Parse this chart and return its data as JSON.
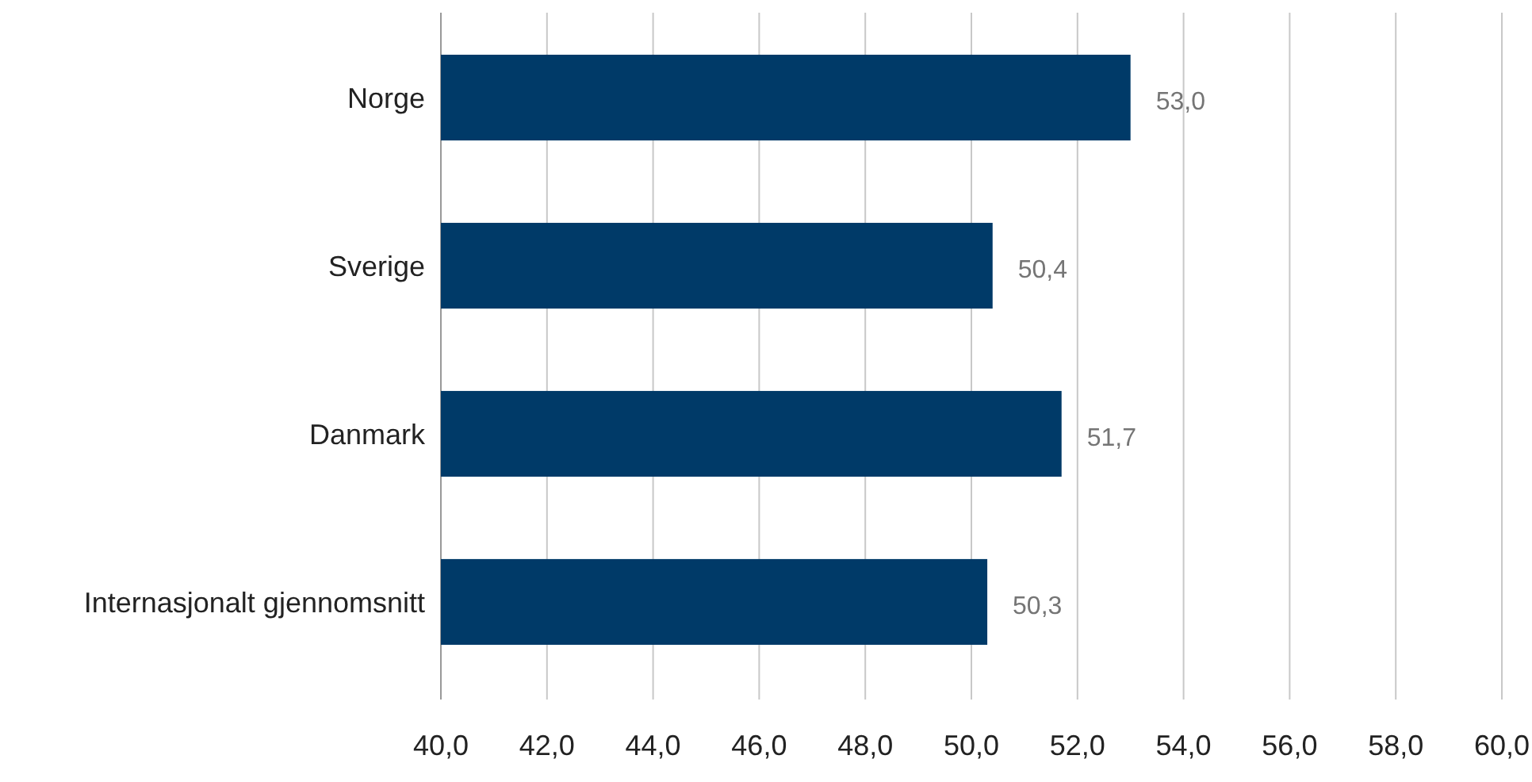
{
  "chart_data": {
    "type": "bar",
    "orientation": "horizontal",
    "categories": [
      "Norge",
      "Sverige",
      "Danmark",
      "Internasjonalt gjennomsnitt"
    ],
    "values": [
      53.0,
      50.4,
      51.7,
      50.3
    ],
    "color": "#003a68",
    "value_labels": [
      "53,0",
      "50,4",
      "51,7",
      "50,3"
    ],
    "xlim": [
      40,
      60
    ],
    "xticks": [
      {
        "value": 40,
        "label": "40,0"
      },
      {
        "value": 42,
        "label": "42,0"
      },
      {
        "value": 44,
        "label": "44,0"
      },
      {
        "value": 46,
        "label": "46,0"
      },
      {
        "value": 48,
        "label": "48,0"
      },
      {
        "value": 50,
        "label": "50,0"
      },
      {
        "value": 52,
        "label": "52,0"
      },
      {
        "value": 54,
        "label": "54,0"
      },
      {
        "value": 56,
        "label": "56,0"
      },
      {
        "value": 58,
        "label": "58,0"
      },
      {
        "value": 60,
        "label": "60,0"
      }
    ],
    "grid": "x"
  }
}
